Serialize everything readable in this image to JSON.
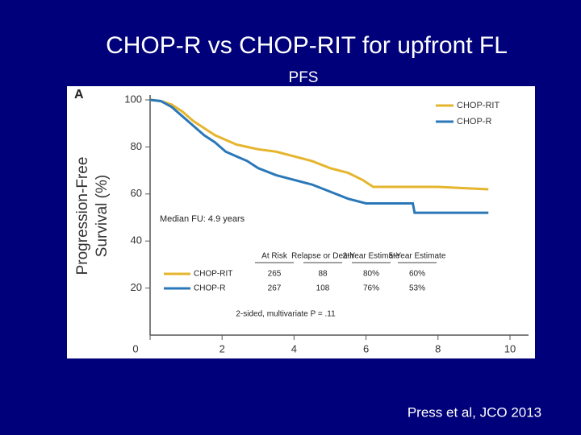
{
  "slide": {
    "title": "CHOP-R vs CHOP-RIT for upfront FL",
    "subtitle": "PFS",
    "citation": "Press et al, JCO 2013"
  },
  "chart_data": {
    "type": "line",
    "panel_label": "A",
    "y_label": [
      "Progression-Free",
      "Survival (%)"
    ],
    "xlim": [
      0,
      10
    ],
    "ylim": [
      0,
      100
    ],
    "xticks": [
      0,
      2,
      4,
      6,
      8,
      10
    ],
    "yticks": [
      20,
      40,
      60,
      80,
      100
    ],
    "legend_position": "top-right",
    "series": [
      {
        "name": "CHOP-RIT",
        "color": "#e6b52e",
        "x": [
          0,
          0.3,
          0.6,
          0.9,
          1.2,
          1.5,
          1.8,
          2.1,
          2.4,
          2.7,
          3.0,
          3.5,
          4.0,
          4.5,
          5.0,
          5.5,
          5.9,
          6.2,
          7.0,
          8.0,
          9.4
        ],
        "values": [
          100,
          99.5,
          98,
          95,
          91,
          88,
          85,
          83,
          81,
          80,
          79,
          78,
          76,
          74,
          71,
          69,
          66,
          63,
          63,
          63,
          62
        ]
      },
      {
        "name": "CHOP-R",
        "color": "#2a78b8",
        "x": [
          0,
          0.3,
          0.6,
          0.9,
          1.2,
          1.5,
          1.8,
          2.1,
          2.4,
          2.7,
          3.0,
          3.5,
          4.0,
          4.5,
          5.0,
          5.5,
          6.0,
          6.5,
          7.3,
          7.35,
          8.0,
          9.4
        ],
        "values": [
          100,
          99.5,
          97,
          93,
          89,
          85,
          82,
          78,
          76,
          74,
          71,
          68,
          66,
          64,
          61,
          58,
          56,
          56,
          56,
          52,
          52,
          52
        ]
      }
    ],
    "median_fu": "Median FU: 4.9 years",
    "table": {
      "columns": [
        "At Risk",
        "Relapse or Death",
        "2-Year Estimate",
        "5-Year Estimate"
      ],
      "rows": [
        {
          "label": "CHOP-RIT",
          "cells": [
            "265",
            "88",
            "80%",
            "60%"
          ]
        },
        {
          "label": "CHOP-R",
          "cells": [
            "267",
            "108",
            "76%",
            "53%"
          ]
        }
      ]
    },
    "p_value_note": "2-sided, multivariate P = .11"
  }
}
